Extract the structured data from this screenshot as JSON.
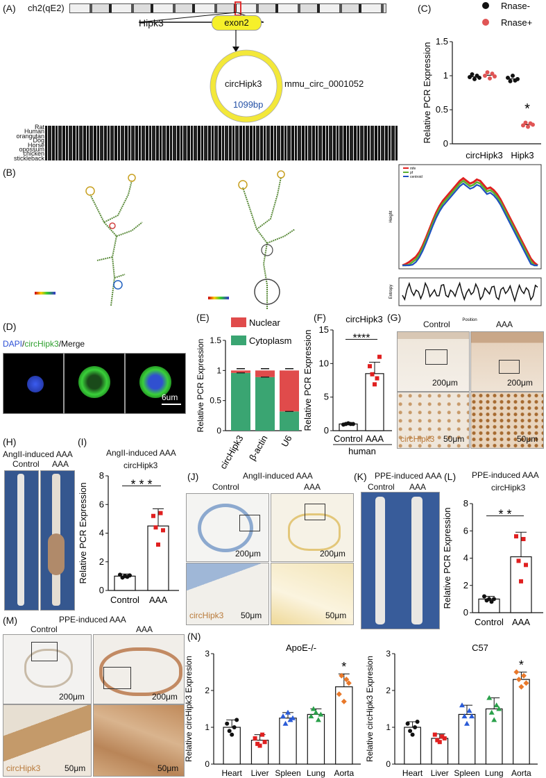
{
  "panels": {
    "A": {
      "label": "(A)",
      "chrom": "ch2(qE2)",
      "gene": "Hipk3",
      "exon": "exon2",
      "circ_name": "circHipk3",
      "circ_id": "mmu_circ_0001052",
      "length": "1099bp",
      "species": [
        "Rat",
        "Human",
        "orangutan",
        "Dog",
        "Horse",
        "opossum",
        "chicken",
        "stickleback"
      ]
    },
    "B": {
      "label": "(B)",
      "legend": [
        "mfe",
        "pf",
        "centroid"
      ],
      "ylabel_top": "Height",
      "ylabel_bottom": "Entropy",
      "xlabel": "Position"
    },
    "C": {
      "label": "(C)",
      "ylabel": "Relative PCR Expression",
      "legend": [
        "Rnase-",
        "Rnase+"
      ],
      "categories": [
        "circHipk3",
        "Hipk3"
      ],
      "star": "*"
    },
    "D": {
      "label": "(D)",
      "title_dapi": "DAPI",
      "title_sep1": "/",
      "title_circ": "circHipk3",
      "title_merge": "/Merge",
      "scale": "6um"
    },
    "E": {
      "label": "(E)",
      "ylabel": "Relative PCR Expression",
      "legend": [
        "Nuclear",
        "Cytoplasm"
      ],
      "categories": [
        "circHipk3",
        "β-actin",
        "U6"
      ]
    },
    "F": {
      "label": "(F)",
      "title": "circHipk3",
      "ylabel": "Relative PCR Expression",
      "categories": [
        "Control",
        "AAA"
      ],
      "group": "human",
      "sig": "****"
    },
    "G": {
      "label": "(G)",
      "control": "Control",
      "aaa": "AAA",
      "scale_big": "200μm",
      "scale_small": "50μm",
      "stain": "circHipk3"
    },
    "H": {
      "label": "(H)",
      "title": "AngII-induced AAA",
      "control": "Control",
      "aaa": "AAA"
    },
    "I": {
      "label": "(I)",
      "title": "AngII-induced AAA",
      "subtitle": "circHipk3",
      "ylabel": "Relative PCR Expression",
      "categories": [
        "Control",
        "AAA"
      ],
      "sig": "* * *"
    },
    "J": {
      "label": "(J)",
      "title": "AngII-induced AAA",
      "control": "Control",
      "aaa": "AAA",
      "scale_big": "200μm",
      "scale_small": "50μm",
      "stain": "circHipk3"
    },
    "K": {
      "label": "(K)",
      "title": "PPE-induced AAA",
      "control": "Control",
      "aaa": "AAA"
    },
    "L": {
      "label": "(L)",
      "title": "PPE-induced AAA",
      "subtitle": "circHipk3",
      "ylabel": "Relative PCR Expression",
      "categories": [
        "Control",
        "AAA"
      ],
      "sig": "* *"
    },
    "M": {
      "label": "(M)",
      "title": "PPE-induced AAA",
      "control": "Control",
      "aaa": "AAA",
      "scale_big": "200μm",
      "scale_small": "50μm",
      "stain": "circHipk3"
    },
    "N": {
      "label": "(N)",
      "ylabel": "Relative circHipk3 Expresion",
      "titles": [
        "ApoE-/-",
        "C57"
      ],
      "categories": [
        "Heart",
        "Liver",
        "Spleen",
        "Lung",
        "Aorta"
      ],
      "star": "*"
    }
  },
  "chart_data": [
    {
      "panel": "C",
      "type": "scatter",
      "ylabel": "Relative PCR Expression",
      "ylim": [
        0.0,
        1.5
      ],
      "yticks": [
        0.0,
        0.5,
        1.0,
        1.5
      ],
      "categories": [
        "circHipk3",
        "Hipk3"
      ],
      "series": [
        {
          "name": "Rnase-",
          "color": "#111111",
          "values": [
            [
              0.98,
              1.02,
              0.95,
              1.0,
              0.97
            ],
            [
              0.97,
              0.92,
              1.0,
              0.93,
              0.95
            ]
          ]
        },
        {
          "name": "Rnase+",
          "color": "#e05555",
          "values": [
            [
              1.0,
              1.05,
              0.96,
              1.03,
              0.99
            ],
            [
              0.27,
              0.31,
              0.25,
              0.3,
              0.28
            ]
          ]
        }
      ]
    },
    {
      "panel": "E",
      "type": "bar",
      "ylabel": "Relative PCR Expression",
      "ylim": [
        0.0,
        1.5
      ],
      "yticks": [
        0.0,
        0.5,
        1.0,
        1.5
      ],
      "categories": [
        "circHipk3",
        "β-actin",
        "U6"
      ],
      "series": [
        {
          "name": "Cytoplasm",
          "color": "#3aa572",
          "values": [
            0.96,
            0.89,
            0.32
          ]
        },
        {
          "name": "Nuclear",
          "color": "#e04b4b",
          "values": [
            0.04,
            0.11,
            0.68
          ]
        }
      ]
    },
    {
      "panel": "F",
      "type": "bar",
      "title": "circHipk3",
      "ylabel": "Relative PCR Expression",
      "ylim": [
        0,
        15
      ],
      "yticks": [
        0,
        5,
        10,
        15
      ],
      "categories": [
        "Control",
        "AAA"
      ],
      "values": [
        1.0,
        8.5
      ],
      "errors": [
        0.1,
        1.7
      ],
      "points": [
        [
          0.9,
          1.0,
          1.1,
          1.0,
          1.0
        ],
        [
          9.6,
          8.4,
          6.9,
          7.8,
          11.0
        ]
      ]
    },
    {
      "panel": "I",
      "type": "bar",
      "ylabel": "Relative PCR Expression",
      "ylim": [
        0,
        8
      ],
      "yticks": [
        0,
        2,
        4,
        6,
        8
      ],
      "categories": [
        "Control",
        "AAA"
      ],
      "values": [
        1.0,
        4.5
      ],
      "errors": [
        0.15,
        1.2
      ],
      "points": [
        [
          1.1,
          0.9,
          1.0,
          0.95,
          1.05
        ],
        [
          5.2,
          4.4,
          3.2,
          5.4,
          4.2
        ]
      ]
    },
    {
      "panel": "L",
      "type": "bar",
      "ylabel": "Relative PCR Expression",
      "ylim": [
        0,
        8
      ],
      "yticks": [
        0,
        2,
        4,
        6,
        8
      ],
      "categories": [
        "Control",
        "AAA"
      ],
      "values": [
        1.0,
        4.1
      ],
      "errors": [
        0.2,
        1.8
      ],
      "points": [
        [
          1.2,
          0.9,
          1.0,
          0.8,
          1.0
        ],
        [
          5.6,
          3.8,
          2.3,
          5.4,
          3.5
        ]
      ]
    },
    {
      "panel": "N1",
      "type": "bar",
      "title": "ApoE-/-",
      "ylabel": "Relative circHipk3 Expresion",
      "ylim": [
        0,
        3
      ],
      "yticks": [
        0,
        1,
        2,
        3
      ],
      "categories": [
        "Heart",
        "Liver",
        "Spleen",
        "Lung",
        "Aorta"
      ],
      "values": [
        1.0,
        0.65,
        1.25,
        1.35,
        2.1
      ],
      "errors": [
        0.2,
        0.15,
        0.15,
        0.15,
        0.35
      ],
      "colors": [
        "#111111",
        "#e02020",
        "#2a5bd7",
        "#2aa04a",
        "#e8782a"
      ],
      "points": [
        [
          1.1,
          0.9,
          0.8,
          1.0,
          1.2
        ],
        [
          0.7,
          0.55,
          0.5,
          0.8,
          0.6
        ],
        [
          1.3,
          1.1,
          1.4,
          1.2,
          1.25
        ],
        [
          1.3,
          1.5,
          1.4,
          1.2,
          1.35
        ],
        [
          1.9,
          2.4,
          1.7,
          2.3,
          2.2
        ]
      ],
      "star": "*"
    },
    {
      "panel": "N2",
      "type": "bar",
      "title": "C57",
      "ylabel": "Relative circHipk3 Expresion",
      "ylim": [
        0,
        3
      ],
      "yticks": [
        0,
        1,
        2,
        3
      ],
      "categories": [
        "Heart",
        "Liver",
        "Spleen",
        "Lung",
        "Aorta"
      ],
      "values": [
        1.0,
        0.7,
        1.35,
        1.5,
        2.3
      ],
      "errors": [
        0.15,
        0.12,
        0.25,
        0.3,
        0.2
      ],
      "colors": [
        "#111111",
        "#e02020",
        "#2a5bd7",
        "#2aa04a",
        "#e8782a"
      ],
      "points": [
        [
          1.1,
          0.9,
          0.8,
          1.0,
          1.15
        ],
        [
          0.8,
          0.65,
          0.6,
          0.75,
          0.7
        ],
        [
          1.6,
          1.3,
          1.1,
          1.45,
          1.3
        ],
        [
          1.8,
          1.4,
          1.2,
          1.6,
          1.5
        ],
        [
          2.5,
          2.3,
          2.1,
          2.4,
          2.2
        ]
      ],
      "star": "*"
    },
    {
      "panel": "B3",
      "type": "line",
      "xlabel": "Position",
      "ylabel": "Height",
      "series": [
        {
          "name": "mfe"
        },
        {
          "name": "pf"
        },
        {
          "name": "centroid"
        }
      ]
    }
  ]
}
